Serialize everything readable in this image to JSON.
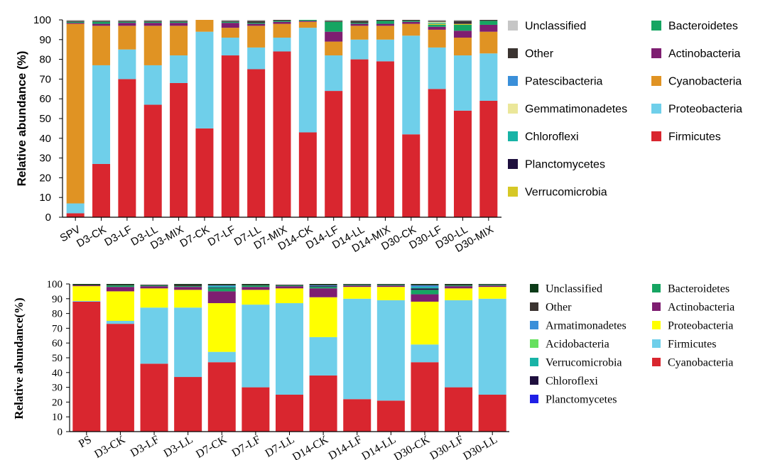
{
  "chart_data": [
    {
      "type": "bar",
      "stacked": true,
      "ylabel": "Relative abundance (%)",
      "xlabel": "",
      "ylim": [
        0,
        100
      ],
      "yticks": [
        0,
        10,
        20,
        30,
        40,
        50,
        60,
        70,
        80,
        90,
        100
      ],
      "categories": [
        "SPV",
        "D3-CK",
        "D3-LF",
        "D3-LL",
        "D3-MIX",
        "D7-CK",
        "D7-LF",
        "D7-LL",
        "D7-MIX",
        "D14-CK",
        "D14-LF",
        "D14-LL",
        "D14-MIX",
        "D30-CK",
        "D30-LF",
        "D30-LL",
        "D30-MIX"
      ],
      "series": [
        {
          "name": "Firmicutes",
          "color": "#d9262f",
          "values": [
            2,
            27,
            70,
            57,
            68,
            45,
            82,
            75,
            84,
            43,
            64,
            80,
            79,
            42,
            65,
            54,
            59
          ]
        },
        {
          "name": "Proteobacteria",
          "color": "#6fcfea",
          "values": [
            5,
            50,
            15,
            20,
            14,
            49,
            9,
            11,
            7,
            53,
            18,
            10,
            11,
            50,
            21,
            28,
            24
          ]
        },
        {
          "name": "Cyanobacteria",
          "color": "#e09323",
          "values": [
            91,
            20,
            12,
            20,
            15,
            6,
            5,
            11,
            7,
            3,
            7,
            7,
            7,
            6,
            9,
            9,
            11
          ]
        },
        {
          "name": "Actinobacteria",
          "color": "#7e1e71",
          "values": [
            0.5,
            1,
            1.5,
            1.5,
            1.5,
            0.5,
            2.5,
            1,
            1,
            0.5,
            5,
            1,
            1,
            1,
            1.5,
            3.5,
            3.5
          ]
        },
        {
          "name": "Bacteroidetes",
          "color": "#16a562",
          "values": [
            0.5,
            1,
            0.5,
            0.5,
            0.5,
            0.5,
            0.5,
            0.5,
            0.5,
            0.5,
            5,
            0.5,
            1.5,
            0.5,
            1,
            3,
            2
          ]
        },
        {
          "name": "Verrucomicrobia",
          "color": "#d6c826",
          "values": [
            0,
            0,
            0,
            0,
            0,
            0,
            0,
            0,
            0,
            0,
            0,
            0,
            0,
            0,
            0.5,
            0.5,
            0
          ]
        },
        {
          "name": "Planctomycetes",
          "color": "#1e0f3d",
          "values": [
            0,
            0,
            0,
            0,
            0,
            0,
            0,
            0,
            0,
            0,
            0,
            0,
            0,
            0,
            0,
            0.5,
            0
          ]
        },
        {
          "name": "Chloroflexi",
          "color": "#18b3a6",
          "values": [
            0,
            0,
            0,
            0,
            0,
            0,
            0,
            0,
            0,
            0,
            0,
            0,
            0,
            0,
            0.5,
            0,
            0
          ]
        },
        {
          "name": "Gemmatimonadetes",
          "color": "#ebe79a",
          "values": [
            0,
            0,
            0,
            0,
            0,
            0,
            0,
            0,
            0,
            0,
            0,
            0,
            0,
            0,
            0.5,
            0,
            0
          ]
        },
        {
          "name": "Patescibacteria",
          "color": "#3a8fd9",
          "values": [
            0,
            0,
            0,
            0,
            0,
            0,
            0,
            0,
            0,
            0,
            0,
            0,
            0,
            0,
            0,
            0,
            0
          ]
        },
        {
          "name": "Other",
          "color": "#3a3330",
          "values": [
            0.5,
            0.5,
            0.5,
            0.5,
            0.5,
            0.5,
            0.5,
            1,
            0.5,
            0.5,
            0.5,
            1,
            0.5,
            0.5,
            0.5,
            1,
            0.5
          ]
        },
        {
          "name": "Unclassified",
          "color": "#c6c6c6",
          "values": [
            0.5,
            0.5,
            0.5,
            0.5,
            0.5,
            0.5,
            0.5,
            0.5,
            0.5,
            0.5,
            0.5,
            0.5,
            0.5,
            0.5,
            0.5,
            0.5,
            0.5
          ]
        }
      ],
      "legend": {
        "placement": "right",
        "columns": [
          [
            "Unclassified",
            "Other",
            "Patescibacteria",
            "Gemmatimonadetes",
            "Chloroflexi",
            "Planctomycetes",
            "Verrucomicrobia"
          ],
          [
            "Bacteroidetes",
            "Actinobacteria",
            "Cyanobacteria",
            "Proteobacteria",
            "Firmicutes"
          ]
        ]
      }
    },
    {
      "type": "bar",
      "stacked": true,
      "ylabel": "Relative abundance(%)",
      "xlabel": "",
      "ylim": [
        0,
        100
      ],
      "yticks": [
        0,
        10,
        20,
        30,
        40,
        50,
        60,
        70,
        80,
        90,
        100
      ],
      "categories": [
        "PS",
        "D3-CK",
        "D3-LF",
        "D3-LL",
        "D7-CK",
        "D7-LF",
        "D7-LL",
        "D14-CK",
        "D14-LF",
        "D14-LL",
        "D30-CK",
        "D30-LF",
        "D30-LL"
      ],
      "series": [
        {
          "name": "Cyanobacteria",
          "color": "#d9262f",
          "values": [
            88,
            73,
            46,
            37,
            47,
            30,
            25,
            38,
            22,
            21,
            47,
            30,
            25
          ]
        },
        {
          "name": "Firmicutes",
          "color": "#6fcfea",
          "values": [
            0.5,
            2,
            38,
            47,
            7,
            56,
            62,
            26,
            68,
            68,
            12,
            59,
            65
          ]
        },
        {
          "name": "Proteobacteria",
          "color": "#ffff00",
          "values": [
            10,
            20,
            13,
            12,
            33,
            10,
            10,
            27,
            8,
            9,
            29,
            8,
            8
          ]
        },
        {
          "name": "Actinobacteria",
          "color": "#7e1e71",
          "values": [
            0.5,
            3,
            1.5,
            2,
            8,
            2,
            1.5,
            6,
            1,
            1,
            5,
            1.5,
            1
          ]
        },
        {
          "name": "Bacteroidetes",
          "color": "#16a562",
          "values": [
            0,
            1,
            0.5,
            0.5,
            2,
            1,
            0.5,
            1,
            0.5,
            0.5,
            3,
            0.5,
            0.5
          ]
        },
        {
          "name": "Planctomycetes",
          "color": "#1f1fe6",
          "values": [
            0,
            0,
            0,
            0,
            0,
            0,
            0,
            0,
            0,
            0,
            0,
            0,
            0
          ]
        },
        {
          "name": "Chloroflexi",
          "color": "#1e0f3d",
          "values": [
            0,
            0,
            0,
            0,
            0.5,
            0,
            0,
            0.5,
            0,
            0,
            1,
            0,
            0
          ]
        },
        {
          "name": "Verrucomicrobia",
          "color": "#18b3a6",
          "values": [
            0,
            0,
            0,
            0,
            1,
            0,
            0,
            0,
            0,
            0,
            1,
            0,
            0
          ]
        },
        {
          "name": "Acidobacteria",
          "color": "#66e05e",
          "values": [
            0,
            0,
            0,
            0,
            0,
            0,
            0,
            0,
            0,
            0,
            0,
            0,
            0
          ]
        },
        {
          "name": "Armatimonadetes",
          "color": "#3a8fd9",
          "values": [
            0,
            0,
            0,
            0,
            0.5,
            0,
            0,
            0.5,
            0,
            0,
            1,
            0,
            0
          ]
        },
        {
          "name": "Other",
          "color": "#3a3330",
          "values": [
            0.5,
            0.5,
            0.5,
            1,
            0.5,
            0.5,
            0.5,
            0.5,
            0.5,
            0.5,
            0.5,
            0.5,
            0.5
          ]
        },
        {
          "name": "Unclassified",
          "color": "#0c3b18",
          "values": [
            0.5,
            0.5,
            0,
            0.5,
            0.5,
            0.5,
            0,
            0.5,
            0,
            0,
            0.5,
            0.5,
            0
          ]
        }
      ],
      "legend": {
        "placement": "right",
        "columns": [
          [
            "Unclassified",
            "Other",
            "Armatimonadetes",
            "Acidobacteria",
            "Verrucomicrobia",
            "Chloroflexi",
            "Planctomycetes"
          ],
          [
            "Bacteroidetes",
            "Actinobacteria",
            "Proteobacteria",
            "Firmicutes",
            "Cyanobacteria"
          ]
        ]
      }
    }
  ]
}
